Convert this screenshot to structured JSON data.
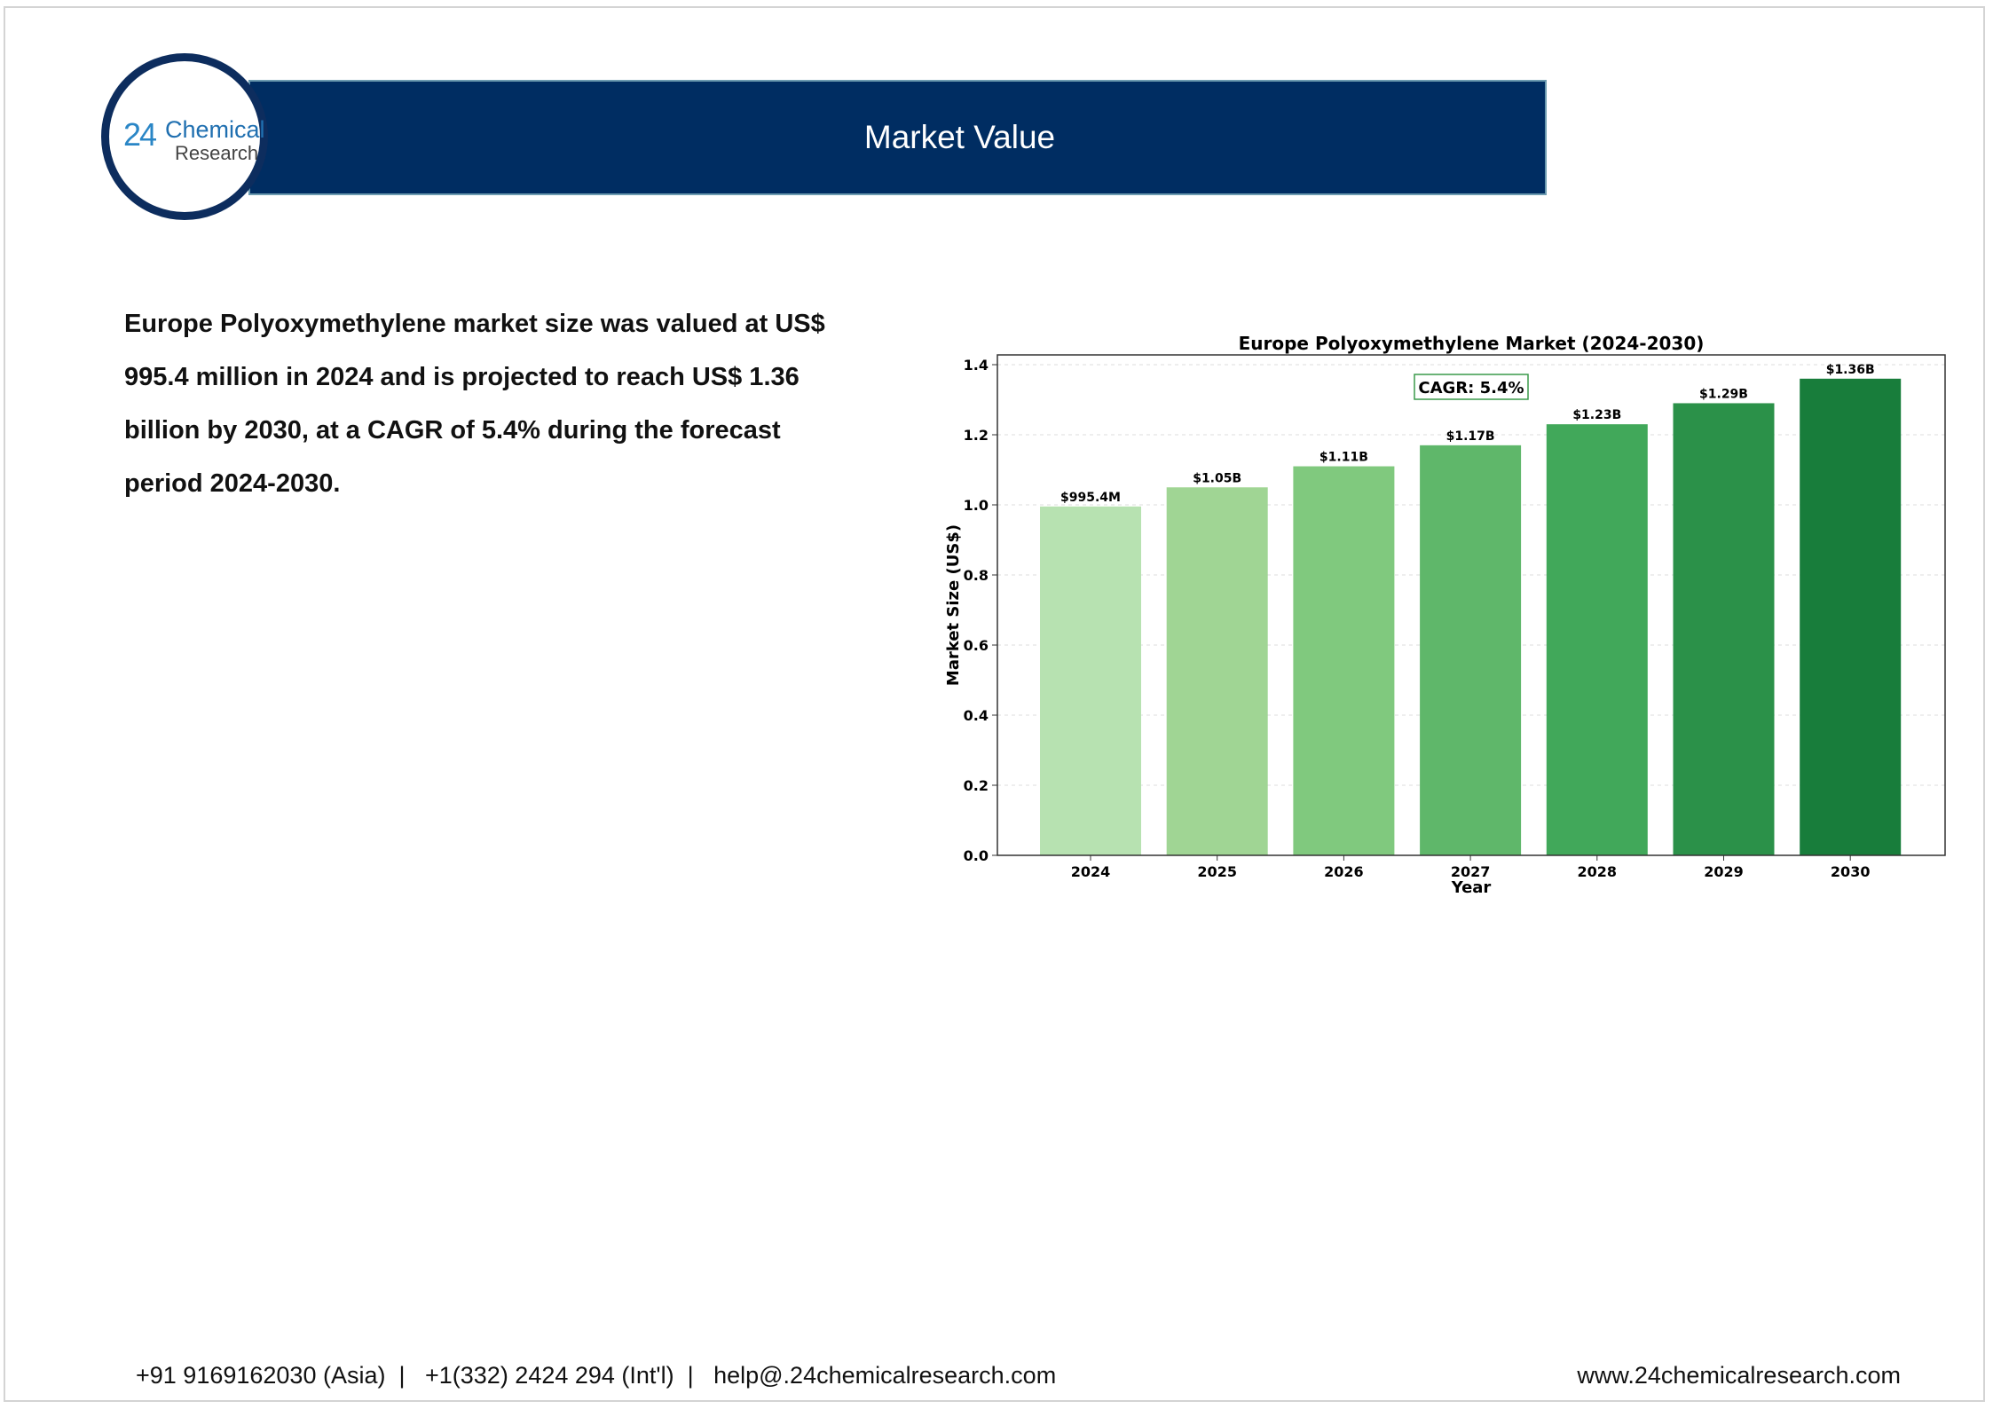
{
  "header": {
    "title": "Market Value"
  },
  "logo": {
    "number": "24",
    "line1": "Chemical",
    "line2": "Research"
  },
  "summary": "Europe Polyoxymethylene market size was valued at US$ 995.4 million in 2024 and is projected to reach US$ 1.36 billion by 2030, at a CAGR of 5.4% during the forecast period 2024-2030.",
  "footer": {
    "contacts": "+91 9169162030 (Asia)  |   +1(332) 2424 294 (Int'l)  |   help@.24chemicalresearch.com",
    "website": "www.24chemicalresearch.com"
  },
  "colors": {
    "header_bg": "#002d62",
    "bars": [
      "#b7e2b1",
      "#a0d594",
      "#80c97e",
      "#5fb76a",
      "#41a85a",
      "#2b9149",
      "#187d3b"
    ]
  },
  "chart_data": {
    "type": "bar",
    "title": "Europe Polyoxymethylene Market (2024-2030)",
    "xlabel": "Year",
    "ylabel": "Market Size (US$)",
    "categories": [
      "2024",
      "2025",
      "2026",
      "2027",
      "2028",
      "2029",
      "2030"
    ],
    "values": [
      0.9954,
      1.05,
      1.11,
      1.17,
      1.23,
      1.29,
      1.36
    ],
    "data_labels": [
      "$995.4M",
      "$1.05B",
      "$1.11B",
      "$1.17B",
      "$1.23B",
      "$1.29B",
      "$1.36B"
    ],
    "ylim": [
      0,
      1.43
    ],
    "yticks": [
      "0.0",
      "0.2",
      "0.4",
      "0.6",
      "0.8",
      "1.0",
      "1.2",
      "1.4"
    ],
    "grid": true,
    "annotation": "CAGR: 5.4%"
  }
}
